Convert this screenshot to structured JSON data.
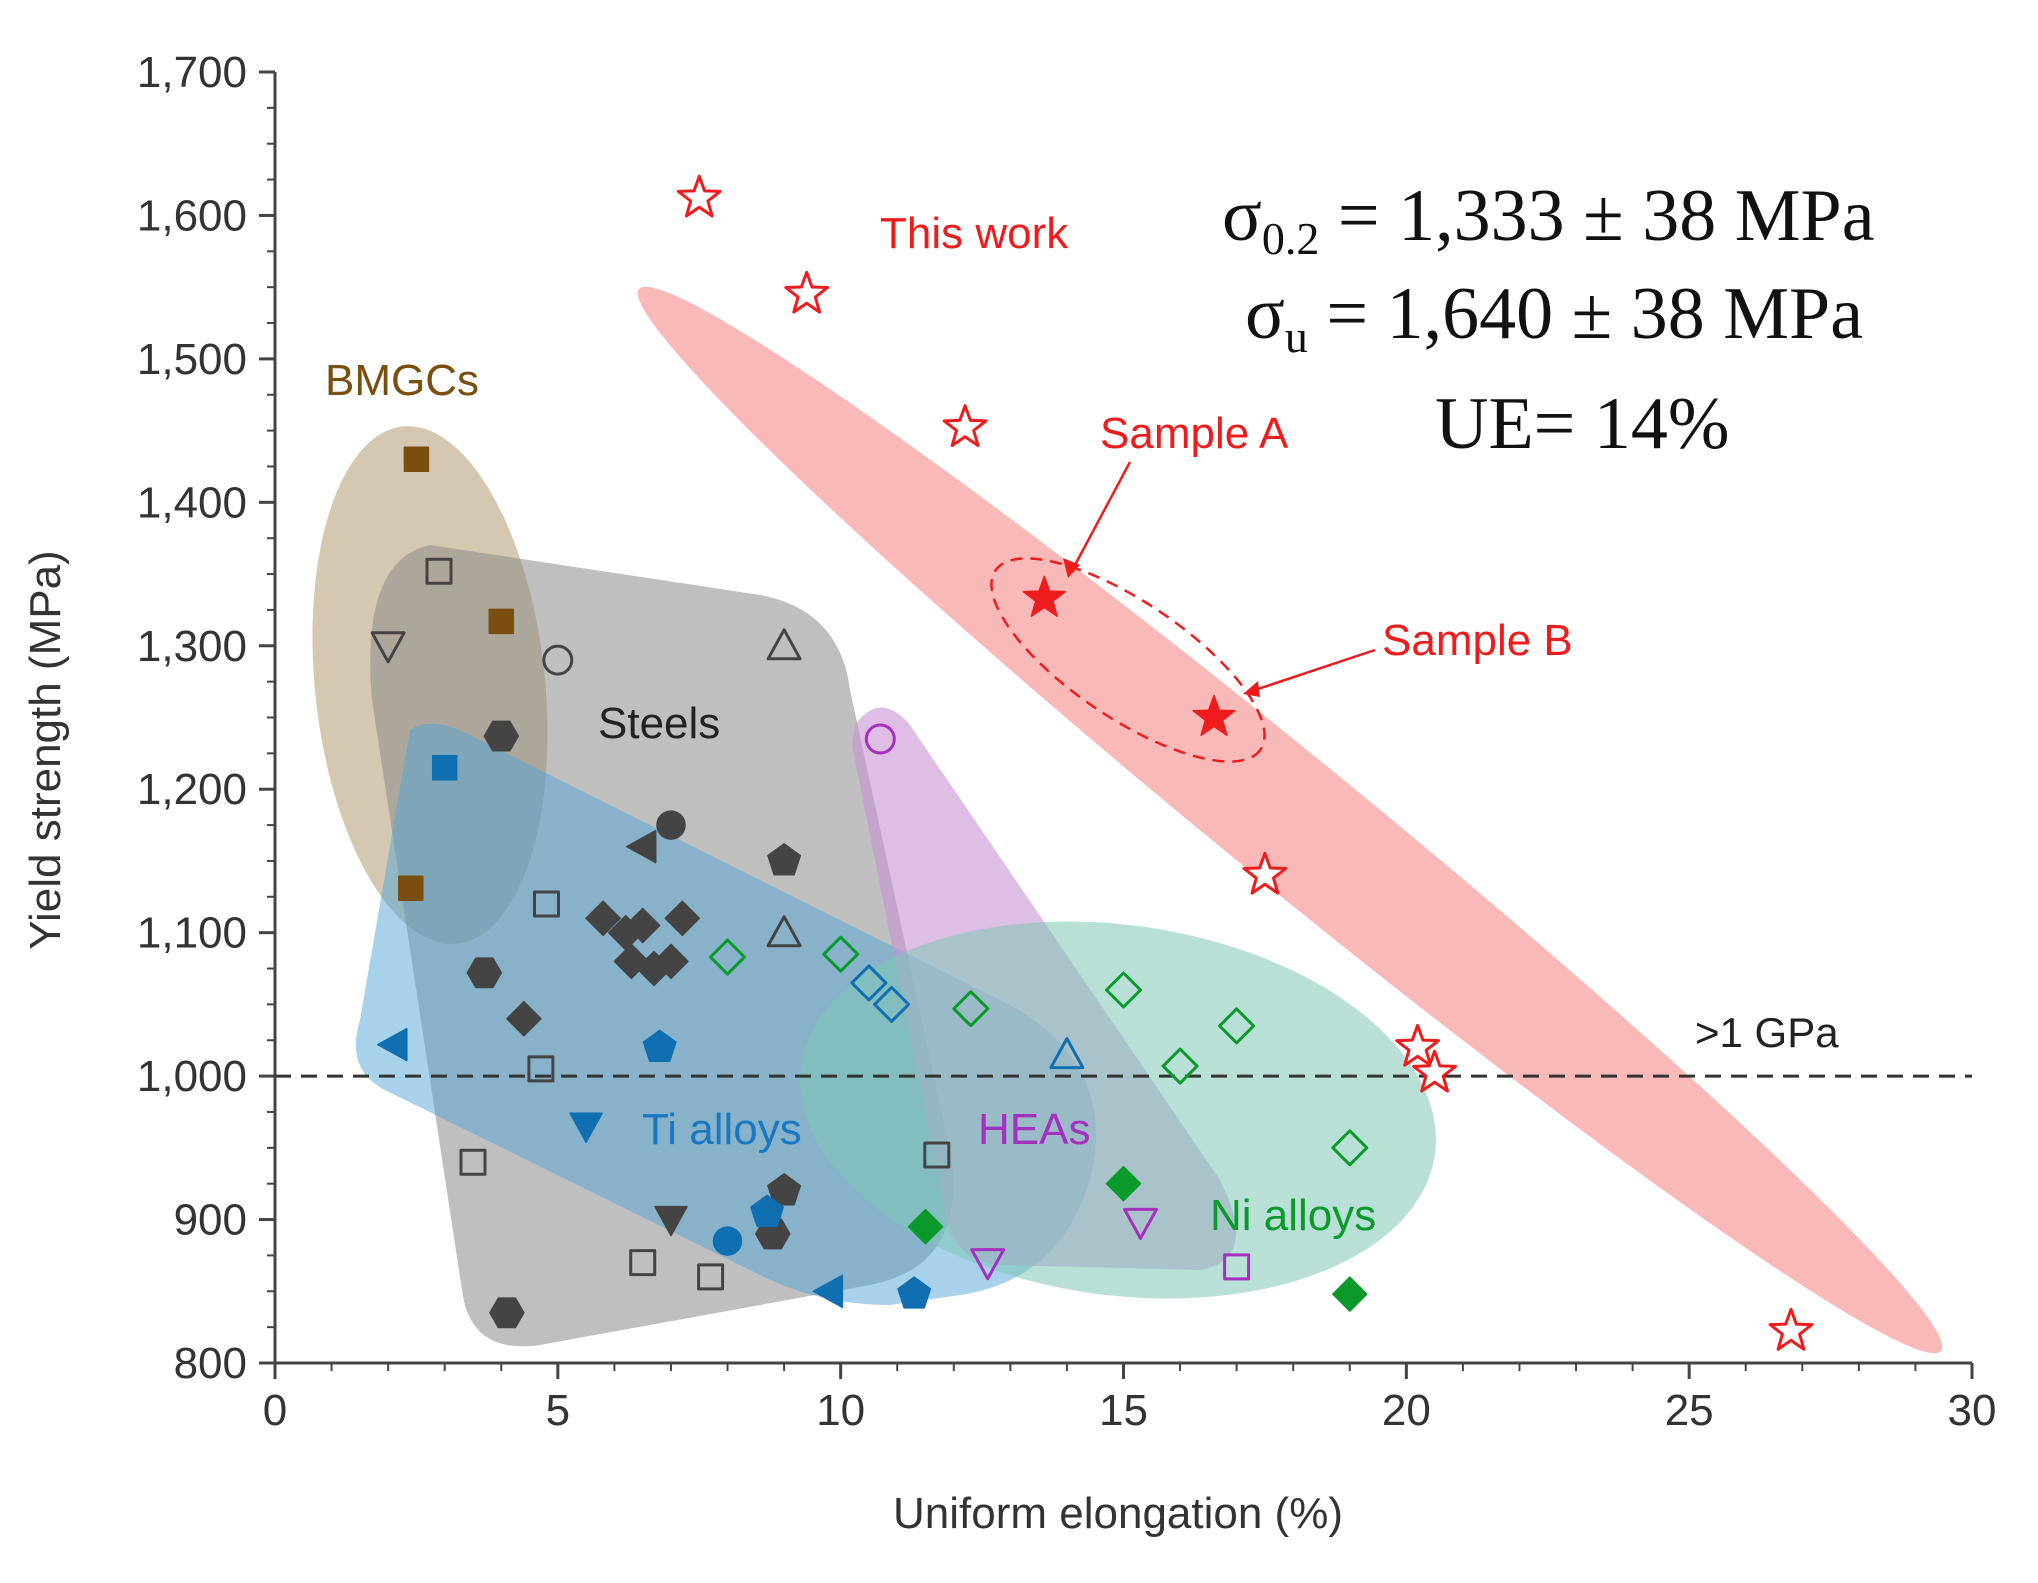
{
  "chart_data": {
    "type": "scatter",
    "title": "",
    "xlabel": "Uniform elongation (%)",
    "ylabel": "Yield strength  (MPa)",
    "xlim": [
      0,
      30
    ],
    "ylim": [
      800,
      1700
    ],
    "x_ticks": [
      0,
      5,
      10,
      15,
      20,
      25,
      30
    ],
    "y_ticks": [
      800,
      900,
      1000,
      1100,
      1200,
      1300,
      1400,
      1500,
      1600,
      1700
    ],
    "x_tick_labels": [
      "0",
      "5",
      "10",
      "15",
      "20",
      "25",
      "30"
    ],
    "y_tick_labels": [
      "800",
      "900",
      "1,000",
      "1,100",
      "1,200",
      "1,300",
      "1,400",
      "1,500",
      "1,600",
      "1,700"
    ],
    "reference_line": {
      "y": 1000,
      "label": ">1 GPa"
    },
    "groups": [
      {
        "name": "BMGCs",
        "color": "#7a4e0e",
        "fill": "#c7b596",
        "points": [
          {
            "x": 2.5,
            "y": 1430,
            "marker": "square",
            "filled": true
          },
          {
            "x": 4.0,
            "y": 1317,
            "marker": "square",
            "filled": true
          },
          {
            "x": 2.4,
            "y": 1131,
            "marker": "square",
            "filled": true
          }
        ]
      },
      {
        "name": "Steels",
        "color": "#444444",
        "fill": "#8a8a8a",
        "points": [
          {
            "x": 2.9,
            "y": 1352,
            "marker": "square",
            "filled": false
          },
          {
            "x": 2.0,
            "y": 1300,
            "marker": "triangle-down",
            "filled": false
          },
          {
            "x": 5.0,
            "y": 1290,
            "marker": "circle",
            "filled": false
          },
          {
            "x": 9.0,
            "y": 1300,
            "marker": "triangle-up",
            "filled": false
          },
          {
            "x": 4.0,
            "y": 1237,
            "marker": "hexagon",
            "filled": true
          },
          {
            "x": 7.0,
            "y": 1175,
            "marker": "circle",
            "filled": true
          },
          {
            "x": 6.5,
            "y": 1160,
            "marker": "triangle-left",
            "filled": true
          },
          {
            "x": 9.0,
            "y": 1150,
            "marker": "pentagon",
            "filled": true
          },
          {
            "x": 4.8,
            "y": 1120,
            "marker": "square",
            "filled": false
          },
          {
            "x": 5.8,
            "y": 1110,
            "marker": "diamond",
            "filled": true
          },
          {
            "x": 6.2,
            "y": 1100,
            "marker": "diamond",
            "filled": true
          },
          {
            "x": 6.5,
            "y": 1105,
            "marker": "diamond",
            "filled": true
          },
          {
            "x": 7.2,
            "y": 1110,
            "marker": "diamond",
            "filled": true
          },
          {
            "x": 6.3,
            "y": 1080,
            "marker": "diamond",
            "filled": true
          },
          {
            "x": 6.7,
            "y": 1075,
            "marker": "diamond",
            "filled": true
          },
          {
            "x": 7.0,
            "y": 1080,
            "marker": "diamond",
            "filled": true
          },
          {
            "x": 9.0,
            "y": 1100,
            "marker": "triangle-up",
            "filled": false
          },
          {
            "x": 3.7,
            "y": 1072,
            "marker": "hexagon",
            "filled": true
          },
          {
            "x": 4.4,
            "y": 1040,
            "marker": "diamond",
            "filled": true
          },
          {
            "x": 4.7,
            "y": 1005,
            "marker": "square",
            "filled": false
          },
          {
            "x": 3.5,
            "y": 940,
            "marker": "square",
            "filled": false
          },
          {
            "x": 11.7,
            "y": 945,
            "marker": "square",
            "filled": false
          },
          {
            "x": 9.0,
            "y": 920,
            "marker": "pentagon",
            "filled": true
          },
          {
            "x": 7.0,
            "y": 900,
            "marker": "triangle-down",
            "filled": true
          },
          {
            "x": 8.8,
            "y": 890,
            "marker": "hexagon",
            "filled": true
          },
          {
            "x": 6.5,
            "y": 870,
            "marker": "square",
            "filled": false
          },
          {
            "x": 7.7,
            "y": 860,
            "marker": "square",
            "filled": false
          },
          {
            "x": 4.1,
            "y": 835,
            "marker": "hexagon",
            "filled": true
          }
        ]
      },
      {
        "name": "Ti alloys",
        "color": "#0f6fb0",
        "fill": "#5aaed6",
        "points": [
          {
            "x": 3.0,
            "y": 1215,
            "marker": "square",
            "filled": true
          },
          {
            "x": 2.1,
            "y": 1022,
            "marker": "triangle-left",
            "filled": true
          },
          {
            "x": 6.8,
            "y": 1020,
            "marker": "pentagon",
            "filled": true
          },
          {
            "x": 5.5,
            "y": 965,
            "marker": "triangle-down",
            "filled": true
          },
          {
            "x": 8.7,
            "y": 905,
            "marker": "pentagon",
            "filled": true
          },
          {
            "x": 8.0,
            "y": 885,
            "marker": "circle",
            "filled": true
          },
          {
            "x": 9.8,
            "y": 850,
            "marker": "triangle-left",
            "filled": true
          },
          {
            "x": 11.3,
            "y": 848,
            "marker": "pentagon",
            "filled": true
          },
          {
            "x": 10.5,
            "y": 1065,
            "marker": "diamond",
            "filled": false
          },
          {
            "x": 10.9,
            "y": 1050,
            "marker": "diamond",
            "filled": false
          },
          {
            "x": 14.0,
            "y": 1015,
            "marker": "triangle-up",
            "filled": false
          }
        ]
      },
      {
        "name": "HEAs",
        "color": "#a52fbf",
        "fill": "#c993d4",
        "points": [
          {
            "x": 10.7,
            "y": 1235,
            "marker": "circle",
            "filled": false
          },
          {
            "x": 12.6,
            "y": 870,
            "marker": "triangle-down",
            "filled": false
          },
          {
            "x": 15.3,
            "y": 898,
            "marker": "triangle-down",
            "filled": false
          },
          {
            "x": 17.0,
            "y": 867,
            "marker": "square",
            "filled": false
          }
        ]
      },
      {
        "name": "Ni alloys",
        "color": "#0a9a2a",
        "fill": "#8ccfbf",
        "points": [
          {
            "x": 8.0,
            "y": 1083,
            "marker": "diamond",
            "filled": false
          },
          {
            "x": 10.0,
            "y": 1085,
            "marker": "diamond",
            "filled": false
          },
          {
            "x": 12.3,
            "y": 1047,
            "marker": "diamond",
            "filled": false
          },
          {
            "x": 15.0,
            "y": 1060,
            "marker": "diamond",
            "filled": false
          },
          {
            "x": 17.0,
            "y": 1035,
            "marker": "diamond",
            "filled": false
          },
          {
            "x": 16.0,
            "y": 1007,
            "marker": "diamond",
            "filled": false
          },
          {
            "x": 19.0,
            "y": 950,
            "marker": "diamond",
            "filled": false
          },
          {
            "x": 15.0,
            "y": 925,
            "marker": "diamond",
            "filled": true
          },
          {
            "x": 11.5,
            "y": 895,
            "marker": "diamond",
            "filled": true
          },
          {
            "x": 19.0,
            "y": 848,
            "marker": "diamond",
            "filled": true
          }
        ]
      },
      {
        "name": "This work",
        "color": "#ee1c1c",
        "fill": "#f7a5a5",
        "points": [
          {
            "x": 7.5,
            "y": 1612,
            "marker": "star",
            "filled": false
          },
          {
            "x": 9.4,
            "y": 1545,
            "marker": "star",
            "filled": false
          },
          {
            "x": 12.2,
            "y": 1452,
            "marker": "star",
            "filled": false
          },
          {
            "x": 13.6,
            "y": 1333,
            "marker": "star",
            "filled": true,
            "label": "Sample A"
          },
          {
            "x": 16.6,
            "y": 1250,
            "marker": "star",
            "filled": true,
            "label": "Sample B"
          },
          {
            "x": 17.5,
            "y": 1140,
            "marker": "star",
            "filled": false
          },
          {
            "x": 20.2,
            "y": 1020,
            "marker": "star",
            "filled": false
          },
          {
            "x": 20.5,
            "y": 1002,
            "marker": "star",
            "filled": false
          },
          {
            "x": 26.8,
            "y": 822,
            "marker": "star",
            "filled": false
          }
        ]
      }
    ],
    "annotations": {
      "sample_a": "Sample A",
      "sample_b": "Sample B",
      "eq_yield": "σ0.2 = 1,333 ± 38 MPa",
      "eq_uts": "σu = 1,640 ± 38 MPa",
      "eq_ue": "UE= 14%",
      "eq_yield_symbol": "σ",
      "eq_yield_sub": "0.2",
      "eq_yield_value": " = 1,333 ± 38 MPa",
      "eq_uts_symbol": "σ",
      "eq_uts_sub": "u",
      "eq_uts_value": " = 1,640 ± 38 MPa"
    }
  }
}
